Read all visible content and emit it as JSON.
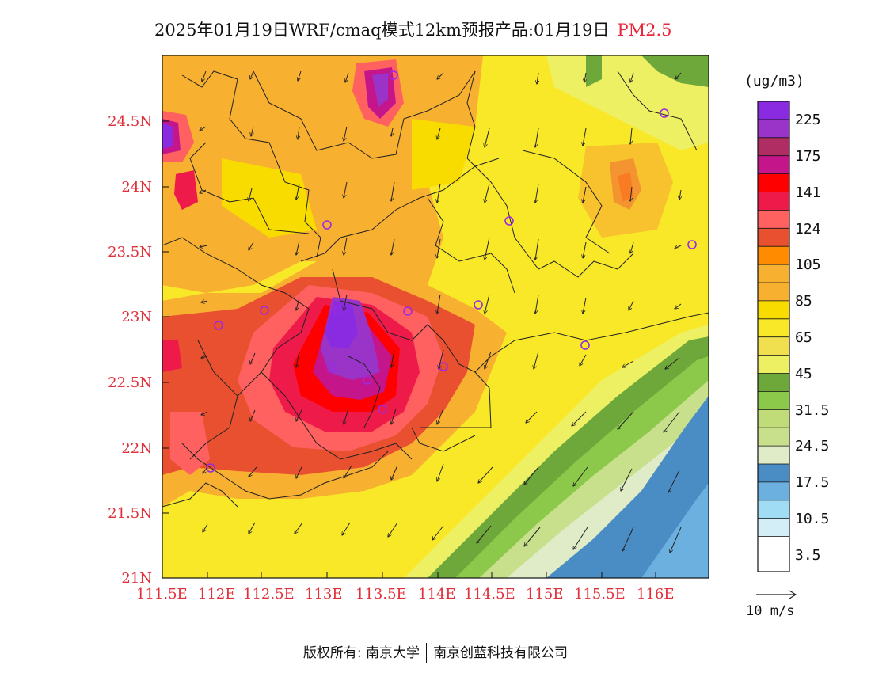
{
  "title": {
    "main": "2025年01月19日WRF/cmaq模式12km预报产品:01月19日",
    "pollutant": "PM2.5"
  },
  "colors": {
    "title_accent": "#e8283a",
    "axis_label": "#e0303a"
  },
  "lat_labels": [
    "24.5N",
    "24N",
    "23.5N",
    "23N",
    "22.5N",
    "22N",
    "21.5N",
    "21N"
  ],
  "lon_labels": [
    "111.5E",
    "112E",
    "112.5E",
    "113E",
    "113.5E",
    "114E",
    "114.5E",
    "115E",
    "115.5E",
    "116E"
  ],
  "legend": {
    "unit": "(ug/m3)",
    "labels": [
      "225",
      "175",
      "141",
      "124",
      "105",
      "85",
      "65",
      "45",
      "31.5",
      "24.5",
      "17.5",
      "10.5",
      "3.5"
    ],
    "colors_top_to_bottom": [
      "#8a2be2",
      "#9a33c8",
      "#b02d63",
      "#c4158b",
      "#ff0000",
      "#ee1a4a",
      "#ff6060",
      "#e85030",
      "#ff8c00",
      "#f8b030",
      "#f8dc00",
      "#f8e828",
      "#f0e050",
      "#eef064",
      "#6ea83a",
      "#8cc84a",
      "#c0dc78",
      "#c8e08c",
      "#e0ecc8",
      "#4a8cc4",
      "#6cb0e0",
      "#a0dcf4",
      "#d4eef8",
      "#ffffff"
    ]
  },
  "wind_reference": "10 m/s",
  "footer": {
    "copyright": "版权所有: 南京大学",
    "company": "南京创蓝科技有限公司"
  }
}
